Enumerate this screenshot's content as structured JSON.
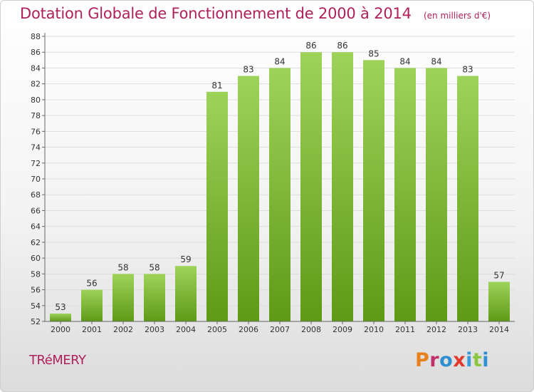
{
  "chart_data": {
    "type": "bar",
    "title": "Dotation Globale de Fonctionnement de 2000 à 2014",
    "subtitle": "(en milliers d'€)",
    "categories": [
      "2000",
      "2001",
      "2002",
      "2003",
      "2004",
      "2005",
      "2006",
      "2007",
      "2008",
      "2009",
      "2010",
      "2011",
      "2012",
      "2013",
      "2014"
    ],
    "values": [
      53,
      56,
      58,
      58,
      59,
      81,
      83,
      84,
      86,
      86,
      85,
      84,
      84,
      83,
      57
    ],
    "ylim": [
      52,
      88
    ],
    "yticks": [
      52,
      54,
      56,
      58,
      60,
      62,
      64,
      66,
      68,
      70,
      72,
      74,
      76,
      78,
      80,
      82,
      84,
      86,
      88
    ],
    "grid": true,
    "bar_color_light": "#9ed35a",
    "bar_color_dark": "#5e9a16"
  },
  "footer": {
    "commune": "TRéMERY",
    "brand": "Proxiti"
  },
  "colors": {
    "title": "#b0205a"
  }
}
